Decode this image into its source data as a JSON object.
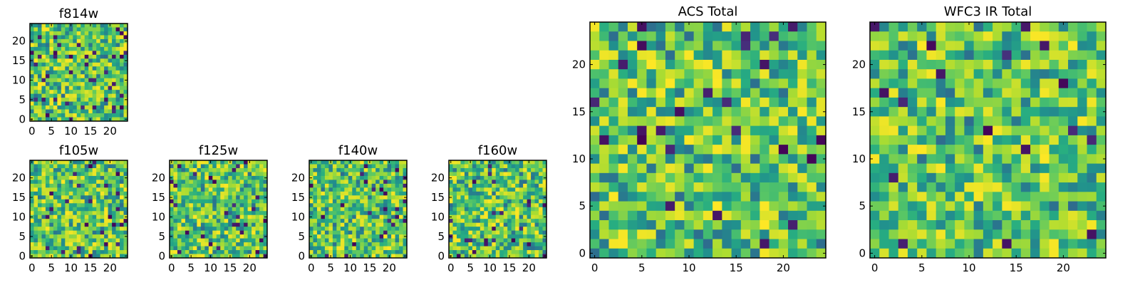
{
  "chart_data": [
    {
      "id": "f814w",
      "type": "heatmap",
      "title": "f814w",
      "grid_size": 25,
      "xlim": [
        -0.5,
        24.5
      ],
      "ylim": [
        -0.5,
        24.5
      ],
      "xticks": [
        0,
        5,
        10,
        15,
        20
      ],
      "yticks": [
        0,
        5,
        10,
        15,
        20
      ],
      "colormap": "viridis",
      "seed": 814
    },
    {
      "id": "f105w",
      "type": "heatmap",
      "title": "f105w",
      "grid_size": 25,
      "xlim": [
        -0.5,
        24.5
      ],
      "ylim": [
        -0.5,
        24.5
      ],
      "xticks": [
        0,
        5,
        10,
        15,
        20
      ],
      "yticks": [
        0,
        5,
        10,
        15,
        20
      ],
      "colormap": "viridis",
      "seed": 105
    },
    {
      "id": "f125w",
      "type": "heatmap",
      "title": "f125w",
      "grid_size": 25,
      "xlim": [
        -0.5,
        24.5
      ],
      "ylim": [
        -0.5,
        24.5
      ],
      "xticks": [
        0,
        5,
        10,
        15,
        20
      ],
      "yticks": [
        0,
        5,
        10,
        15,
        20
      ],
      "colormap": "viridis",
      "seed": 125
    },
    {
      "id": "f140w",
      "type": "heatmap",
      "title": "f140w",
      "grid_size": 25,
      "xlim": [
        -0.5,
        24.5
      ],
      "ylim": [
        -0.5,
        24.5
      ],
      "xticks": [
        0,
        5,
        10,
        15,
        20
      ],
      "yticks": [
        0,
        5,
        10,
        15,
        20
      ],
      "colormap": "viridis",
      "seed": 140
    },
    {
      "id": "f160w",
      "type": "heatmap",
      "title": "f160w",
      "grid_size": 25,
      "xlim": [
        -0.5,
        24.5
      ],
      "ylim": [
        -0.5,
        24.5
      ],
      "xticks": [
        0,
        5,
        10,
        15,
        20
      ],
      "yticks": [
        0,
        5,
        10,
        15,
        20
      ],
      "colormap": "viridis",
      "seed": 160
    },
    {
      "id": "acs_total",
      "type": "heatmap",
      "title": "ACS Total",
      "grid_size": 25,
      "xlim": [
        -0.5,
        24.5
      ],
      "ylim": [
        -0.5,
        24.5
      ],
      "xticks": [
        0,
        5,
        10,
        15,
        20
      ],
      "yticks": [
        0,
        5,
        10,
        15,
        20
      ],
      "colormap": "viridis",
      "seed": 999
    },
    {
      "id": "wfc3_ir_total",
      "type": "heatmap",
      "title": "WFC3 IR Total",
      "grid_size": 25,
      "xlim": [
        -0.5,
        24.5
      ],
      "ylim": [
        -0.5,
        24.5
      ],
      "xticks": [
        0,
        5,
        10,
        15,
        20
      ],
      "yticks": [
        0,
        5,
        10,
        15,
        20
      ],
      "colormap": "viridis",
      "seed": 3
    }
  ],
  "colors": {
    "viridis_dark": "#440154",
    "viridis_blue": "#31688e",
    "viridis_teal": "#21918c",
    "viridis_green": "#5ec962",
    "viridis_yellow": "#fde725",
    "axis_color": "#000000"
  }
}
